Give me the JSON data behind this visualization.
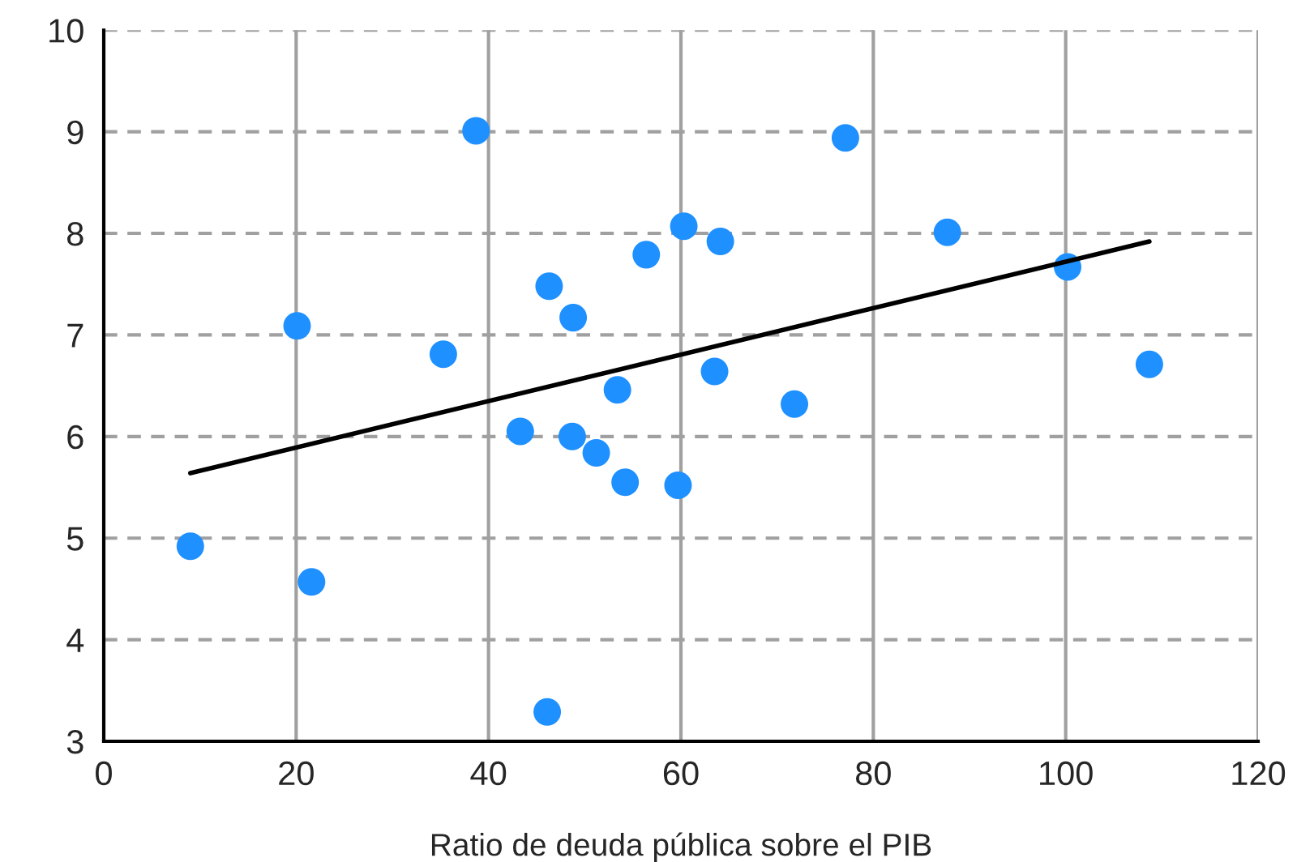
{
  "chart_data": {
    "type": "scatter",
    "xlabel": "Ratio de deuda pública sobre el PIB",
    "xlim": [
      0,
      120
    ],
    "xticks": [
      0,
      20,
      40,
      60,
      80,
      100,
      120
    ],
    "ylim": [
      3,
      10
    ],
    "yticks": [
      3,
      4,
      5,
      6,
      7,
      8,
      9,
      10
    ],
    "grid": true,
    "series": [
      {
        "color": "#1e90ff",
        "marker": "circle",
        "x": [
          9,
          20.1,
          21.6,
          35.3,
          38.7,
          43.3,
          46.3,
          46.1,
          48.8,
          48.7,
          51.2,
          53.4,
          54.2,
          56.4,
          59.7,
          60.3,
          63.5,
          64.1,
          71.8,
          77.1,
          87.7,
          100.2,
          108.7
        ],
        "values": [
          4.92,
          7.09,
          4.57,
          6.81,
          9.01,
          6.05,
          7.48,
          3.29,
          7.17,
          6.0,
          5.84,
          6.46,
          5.55,
          7.79,
          5.52,
          8.07,
          6.64,
          7.92,
          6.32,
          8.94,
          8.01,
          7.67,
          6.71
        ]
      },
      {
        "type": "line",
        "marker": "none",
        "color": "#000000",
        "x": [
          9,
          108.7
        ],
        "values": [
          5.64,
          7.92
        ]
      }
    ]
  }
}
